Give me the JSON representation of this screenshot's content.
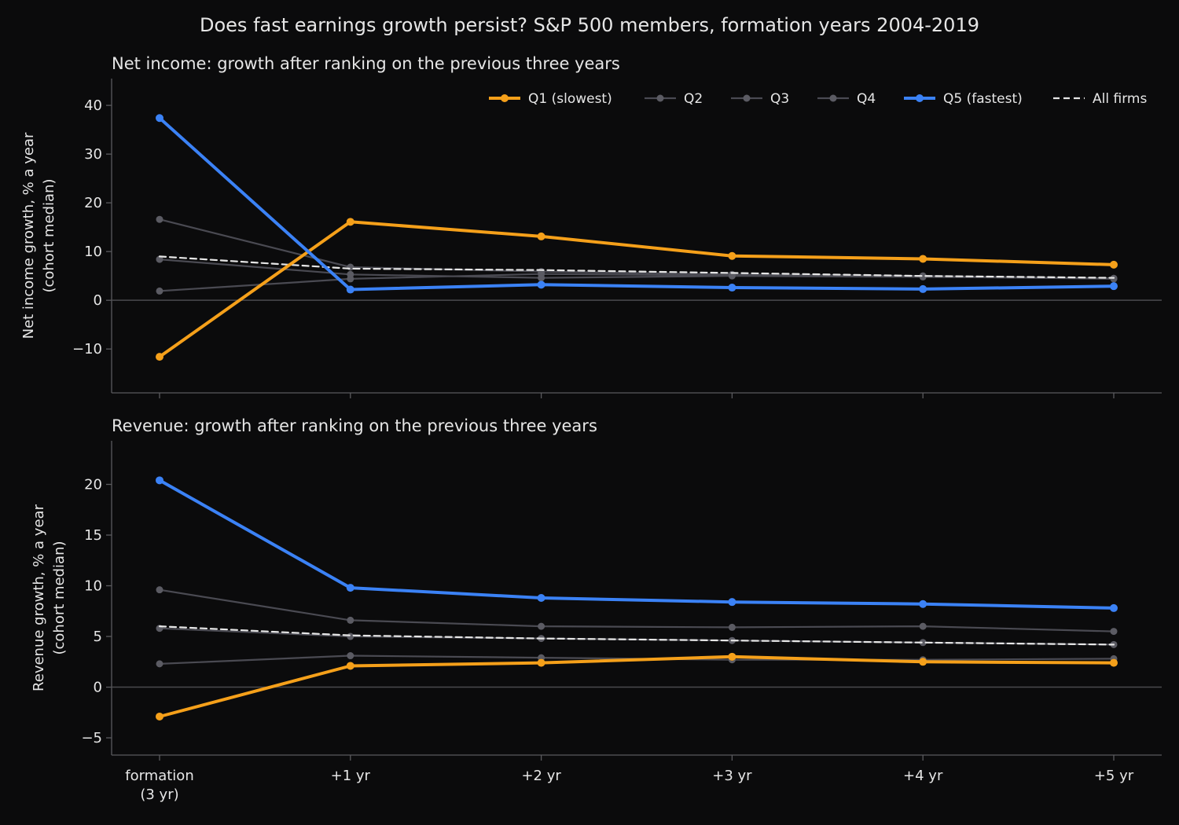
{
  "figure_title": "Does fast earnings growth persist? S&P 500 members, formation years 2004-2019",
  "colors": {
    "background": "#0b0b0c",
    "axis": "#5a5a5e",
    "zero_line": "#4a4a4e",
    "text": "#e6e6e6",
    "q1": "#f5a01a",
    "q5": "#3b82f6",
    "middle_quintiles": "#4a4a52",
    "all_firms": "#e6e6e6"
  },
  "legend": [
    {
      "key": "q1",
      "label": "Q1 (slowest)",
      "style": "bold"
    },
    {
      "key": "q2",
      "label": "Q2",
      "style": "muted"
    },
    {
      "key": "q3",
      "label": "Q3",
      "style": "muted"
    },
    {
      "key": "q4",
      "label": "Q4",
      "style": "muted"
    },
    {
      "key": "q5",
      "label": "Q5 (fastest)",
      "style": "bold"
    },
    {
      "key": "all",
      "label": "All firms",
      "style": "dashed"
    }
  ],
  "chart_data": [
    {
      "type": "line",
      "title": "Net income: growth after ranking on the previous three years",
      "ylabel": [
        "Net income growth, % a year",
        "(cohort median)"
      ],
      "xlabel": "",
      "categories": [
        "formation\n(3 yr)",
        "+1 yr",
        "+2 yr",
        "+3 yr",
        "+4 yr",
        "+5 yr"
      ],
      "show_x_tick_labels": false,
      "ylim": [
        -19,
        45.5
      ],
      "yticks": [
        -10,
        0,
        10,
        20,
        30,
        40
      ],
      "ytick_labels": [
        "−10",
        "0",
        "10",
        "20",
        "30",
        "40"
      ],
      "grid": false,
      "legend_position": "top-right",
      "series": [
        {
          "key": "q2",
          "name": "Q2",
          "values": [
            1.9,
            4.4,
            5.4,
            5.1,
            4.9,
            4.4
          ]
        },
        {
          "key": "q3",
          "name": "Q3",
          "values": [
            8.4,
            5.3,
            4.6,
            5.0,
            4.8,
            4.5
          ]
        },
        {
          "key": "q4",
          "name": "Q4",
          "values": [
            16.6,
            6.8,
            5.9,
            5.3,
            5.0,
            4.5
          ]
        },
        {
          "key": "all",
          "name": "All firms",
          "values": [
            9.0,
            6.5,
            6.2,
            5.6,
            5.0,
            4.6
          ]
        },
        {
          "key": "q1",
          "name": "Q1 (slowest)",
          "values": [
            -11.6,
            16.1,
            13.1,
            9.1,
            8.5,
            7.3
          ]
        },
        {
          "key": "q5",
          "name": "Q5 (fastest)",
          "values": [
            37.4,
            2.2,
            3.2,
            2.6,
            2.3,
            2.9
          ]
        }
      ]
    },
    {
      "type": "line",
      "title": "Revenue: growth after ranking on the previous three years",
      "ylabel": [
        "Revenue growth, % a year",
        "(cohort median)"
      ],
      "xlabel": "",
      "categories": [
        "formation\n(3 yr)",
        "+1 yr",
        "+2 yr",
        "+3 yr",
        "+4 yr",
        "+5 yr"
      ],
      "show_x_tick_labels": true,
      "ylim": [
        -6.7,
        24.3
      ],
      "yticks": [
        -5,
        0,
        5,
        10,
        15,
        20
      ],
      "ytick_labels": [
        "−5",
        "0",
        "5",
        "10",
        "15",
        "20"
      ],
      "grid": false,
      "series": [
        {
          "key": "q2",
          "name": "Q2",
          "values": [
            2.3,
            3.1,
            2.9,
            2.7,
            2.7,
            2.8
          ]
        },
        {
          "key": "q3",
          "name": "Q3",
          "values": [
            5.8,
            5.0,
            4.8,
            4.6,
            4.4,
            4.2
          ]
        },
        {
          "key": "q4",
          "name": "Q4",
          "values": [
            9.6,
            6.6,
            6.0,
            5.9,
            6.0,
            5.5
          ]
        },
        {
          "key": "all",
          "name": "All firms",
          "values": [
            6.0,
            5.1,
            4.8,
            4.6,
            4.4,
            4.2
          ]
        },
        {
          "key": "q1",
          "name": "Q1 (slowest)",
          "values": [
            -2.9,
            2.1,
            2.4,
            3.0,
            2.5,
            2.4
          ]
        },
        {
          "key": "q5",
          "name": "Q5 (fastest)",
          "values": [
            20.4,
            9.8,
            8.8,
            8.4,
            8.2,
            7.8
          ]
        }
      ]
    }
  ]
}
